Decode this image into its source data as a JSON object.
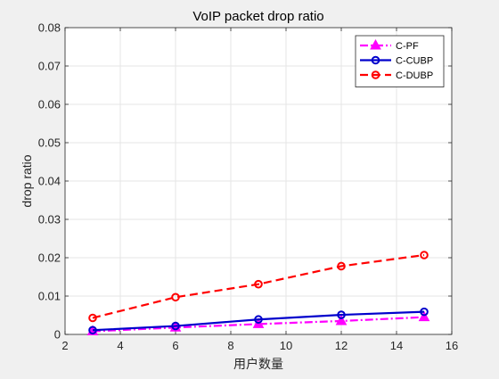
{
  "chart_data": {
    "type": "line",
    "title": "VoIP packet drop ratio",
    "xlabel": "用户数量",
    "ylabel": "drop ratio",
    "xlim": [
      2,
      16
    ],
    "ylim": [
      0,
      0.08
    ],
    "xticks": [
      2,
      4,
      6,
      8,
      10,
      12,
      14,
      16
    ],
    "yticks": [
      0,
      0.01,
      0.02,
      0.03,
      0.04,
      0.05,
      0.06,
      0.07,
      0.08
    ],
    "xtick_labels": [
      "2",
      "4",
      "6",
      "8",
      "10",
      "12",
      "14",
      "16"
    ],
    "ytick_labels": [
      "0",
      "0.01",
      "0.02",
      "0.03",
      "0.04",
      "0.05",
      "0.06",
      "0.07",
      "0.08"
    ],
    "grid": true,
    "legend_position": "top-right",
    "x": [
      3,
      6,
      9,
      12,
      15
    ],
    "series": [
      {
        "name": "C-PF",
        "values": [
          0.0008,
          0.0018,
          0.0027,
          0.0035,
          0.0045
        ],
        "color": "#ff00ff",
        "line_style": "dash-dot",
        "marker": "triangle"
      },
      {
        "name": "C-CUBP",
        "values": [
          0.0011,
          0.0022,
          0.0039,
          0.0051,
          0.0059
        ],
        "color": "#0000cc",
        "line_style": "solid",
        "marker": "circle"
      },
      {
        "name": "C-DUBP",
        "values": [
          0.0043,
          0.0097,
          0.0131,
          0.0178,
          0.0207
        ],
        "color": "#ff0000",
        "line_style": "dashed",
        "marker": "circle"
      }
    ]
  }
}
